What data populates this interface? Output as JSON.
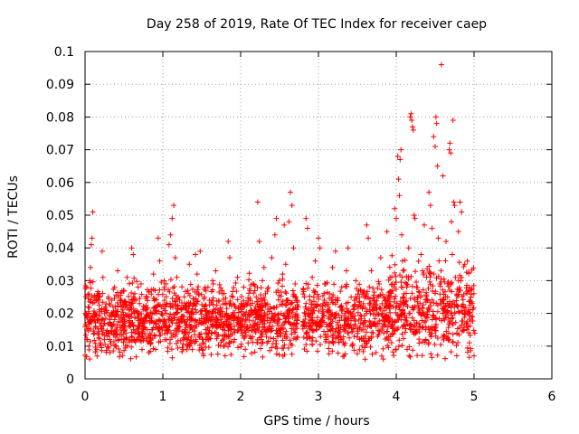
{
  "chart_data": {
    "type": "scatter",
    "title": "Day 258 of 2019, Rate Of TEC Index for receiver caep",
    "xlabel": "GPS time / hours",
    "ylabel": "ROTI / TECUs",
    "xlim": [
      0,
      6
    ],
    "ylim": [
      0,
      0.1
    ],
    "x_ticks": [
      "0",
      "1",
      "2",
      "3",
      "4",
      "5",
      "6"
    ],
    "y_ticks": [
      "0",
      "0.01",
      "0.02",
      "0.03",
      "0.04",
      "0.05",
      "0.06",
      "0.07",
      "0.08",
      "0.09",
      "0.1"
    ],
    "grid": true,
    "marker": "+",
    "series": [
      {
        "name": "ROTI",
        "color": "#ff0000",
        "points": [
          [
            0.0,
            0.016
          ],
          [
            0.02,
            0.028
          ],
          [
            0.03,
            0.012
          ],
          [
            0.04,
            0.022
          ],
          [
            0.05,
            0.01
          ],
          [
            0.06,
            0.03
          ],
          [
            0.07,
            0.034
          ],
          [
            0.08,
            0.041
          ],
          [
            0.09,
            0.043
          ],
          [
            0.1,
            0.051
          ],
          [
            0.11,
            0.02
          ],
          [
            0.12,
            0.014
          ],
          [
            0.14,
            0.024
          ],
          [
            0.15,
            0.009
          ],
          [
            0.17,
            0.018
          ],
          [
            0.18,
            0.026
          ],
          [
            0.2,
            0.011
          ],
          [
            0.22,
            0.039
          ],
          [
            0.23,
            0.031
          ],
          [
            0.25,
            0.017
          ],
          [
            0.27,
            0.021
          ],
          [
            0.29,
            0.013
          ],
          [
            0.3,
            0.025
          ],
          [
            0.32,
            0.008
          ],
          [
            0.34,
            0.019
          ],
          [
            0.36,
            0.022
          ],
          [
            0.38,
            0.028
          ],
          [
            0.4,
            0.015
          ],
          [
            0.42,
            0.033
          ],
          [
            0.44,
            0.012
          ],
          [
            0.46,
            0.024
          ],
          [
            0.48,
            0.018
          ],
          [
            0.5,
            0.027
          ],
          [
            0.52,
            0.01
          ],
          [
            0.54,
            0.031
          ],
          [
            0.56,
            0.021
          ],
          [
            0.58,
            0.016
          ],
          [
            0.6,
            0.04
          ],
          [
            0.62,
            0.038
          ],
          [
            0.64,
            0.026
          ],
          [
            0.66,
            0.012
          ],
          [
            0.68,
            0.019
          ],
          [
            0.7,
            0.023
          ],
          [
            0.72,
            0.029
          ],
          [
            0.74,
            0.014
          ],
          [
            0.76,
            0.017
          ],
          [
            0.78,
            0.021
          ],
          [
            0.8,
            0.025
          ],
          [
            0.82,
            0.008
          ],
          [
            0.84,
            0.011
          ],
          [
            0.86,
            0.015
          ],
          [
            0.88,
            0.032
          ],
          [
            0.9,
            0.027
          ],
          [
            0.92,
            0.02
          ],
          [
            0.94,
            0.043
          ],
          [
            0.96,
            0.036
          ],
          [
            0.98,
            0.022
          ],
          [
            1.0,
            0.018
          ],
          [
            1.02,
            0.024
          ],
          [
            1.04,
            0.029
          ],
          [
            1.06,
            0.014
          ],
          [
            1.08,
            0.041
          ],
          [
            1.1,
            0.044
          ],
          [
            1.12,
            0.049
          ],
          [
            1.14,
            0.053
          ],
          [
            1.16,
            0.037
          ],
          [
            1.18,
            0.031
          ],
          [
            1.2,
            0.025
          ],
          [
            1.22,
            0.016
          ],
          [
            1.24,
            0.019
          ],
          [
            1.26,
            0.009
          ],
          [
            1.28,
            0.012
          ],
          [
            1.3,
            0.021
          ],
          [
            1.32,
            0.027
          ],
          [
            1.34,
            0.035
          ],
          [
            1.36,
            0.02
          ],
          [
            1.38,
            0.015
          ],
          [
            1.4,
            0.023
          ],
          [
            1.42,
            0.038
          ],
          [
            1.44,
            0.032
          ],
          [
            1.46,
            0.026
          ],
          [
            1.48,
            0.039
          ],
          [
            1.5,
            0.017
          ],
          [
            1.52,
            0.011
          ],
          [
            1.54,
            0.022
          ],
          [
            1.56,
            0.014
          ],
          [
            1.58,
            0.028
          ],
          [
            1.6,
            0.024
          ],
          [
            1.62,
            0.019
          ],
          [
            1.64,
            0.03
          ],
          [
            1.66,
            0.018
          ],
          [
            1.68,
            0.033
          ],
          [
            1.7,
            0.013
          ],
          [
            1.72,
            0.021
          ],
          [
            1.74,
            0.016
          ],
          [
            1.76,
            0.027
          ],
          [
            1.78,
            0.01
          ],
          [
            1.8,
            0.023
          ],
          [
            1.82,
            0.02
          ],
          [
            1.84,
            0.042
          ],
          [
            1.86,
            0.037
          ],
          [
            1.88,
            0.015
          ],
          [
            1.9,
            0.025
          ],
          [
            1.92,
            0.012
          ],
          [
            1.94,
            0.019
          ],
          [
            1.96,
            0.031
          ],
          [
            1.98,
            0.017
          ],
          [
            2.0,
            0.022
          ],
          [
            2.02,
            0.014
          ],
          [
            2.04,
            0.028
          ],
          [
            2.06,
            0.009
          ],
          [
            2.08,
            0.018
          ],
          [
            2.1,
            0.024
          ],
          [
            2.12,
            0.013
          ],
          [
            2.14,
            0.021
          ],
          [
            2.16,
            0.029
          ],
          [
            2.18,
            0.016
          ],
          [
            2.2,
            0.025
          ],
          [
            2.22,
            0.054
          ],
          [
            2.24,
            0.042
          ],
          [
            2.26,
            0.019
          ],
          [
            2.28,
            0.03
          ],
          [
            2.3,
            0.034
          ],
          [
            2.32,
            0.026
          ],
          [
            2.34,
            0.011
          ],
          [
            2.36,
            0.015
          ],
          [
            2.38,
            0.022
          ],
          [
            2.4,
            0.037
          ],
          [
            2.42,
            0.018
          ],
          [
            2.44,
            0.044
          ],
          [
            2.46,
            0.049
          ],
          [
            2.48,
            0.027
          ],
          [
            2.5,
            0.014
          ],
          [
            2.52,
            0.02
          ],
          [
            2.54,
            0.032
          ],
          [
            2.56,
            0.047
          ],
          [
            2.58,
            0.035
          ],
          [
            2.6,
            0.024
          ],
          [
            2.62,
            0.048
          ],
          [
            2.64,
            0.057
          ],
          [
            2.66,
            0.053
          ],
          [
            2.68,
            0.04
          ],
          [
            2.7,
            0.029
          ],
          [
            2.72,
            0.017
          ],
          [
            2.74,
            0.022
          ],
          [
            2.8,
            0.016
          ],
          [
            2.82,
            0.025
          ],
          [
            2.84,
            0.049
          ],
          [
            2.86,
            0.046
          ],
          [
            2.88,
            0.013
          ],
          [
            2.9,
            0.02
          ],
          [
            2.92,
            0.031
          ],
          [
            2.94,
            0.027
          ],
          [
            2.96,
            0.036
          ],
          [
            2.98,
            0.015
          ],
          [
            3.0,
            0.043
          ],
          [
            3.02,
            0.04
          ],
          [
            3.04,
            0.018
          ],
          [
            3.06,
            0.023
          ],
          [
            3.08,
            0.029
          ],
          [
            3.1,
            0.012
          ],
          [
            3.12,
            0.021
          ],
          [
            3.14,
            0.026
          ],
          [
            3.16,
            0.017
          ],
          [
            3.18,
            0.034
          ],
          [
            3.2,
            0.019
          ],
          [
            3.22,
            0.039
          ],
          [
            3.24,
            0.024
          ],
          [
            3.26,
            0.014
          ],
          [
            3.28,
            0.022
          ],
          [
            3.3,
            0.028
          ],
          [
            3.32,
            0.011
          ],
          [
            3.34,
            0.02
          ],
          [
            3.36,
            0.033
          ],
          [
            3.38,
            0.04
          ],
          [
            3.4,
            0.016
          ],
          [
            3.42,
            0.025
          ],
          [
            3.44,
            0.019
          ],
          [
            3.46,
            0.013
          ],
          [
            3.48,
            0.03
          ],
          [
            3.5,
            0.022
          ],
          [
            3.52,
            0.018
          ],
          [
            3.54,
            0.027
          ],
          [
            3.56,
            0.01
          ],
          [
            3.58,
            0.015
          ],
          [
            3.6,
            0.006
          ],
          [
            3.62,
            0.047
          ],
          [
            3.64,
            0.043
          ],
          [
            3.66,
            0.021
          ],
          [
            3.68,
            0.033
          ],
          [
            3.7,
            0.017
          ],
          [
            3.72,
            0.024
          ],
          [
            3.74,
            0.008
          ],
          [
            3.76,
            0.013
          ],
          [
            3.78,
            0.029
          ],
          [
            3.8,
            0.037
          ],
          [
            3.82,
            0.02
          ],
          [
            3.84,
            0.014
          ],
          [
            3.86,
            0.025
          ],
          [
            3.88,
            0.045
          ],
          [
            3.9,
            0.019
          ],
          [
            3.92,
            0.031
          ],
          [
            3.94,
            0.011
          ],
          [
            3.96,
            0.022
          ],
          [
            3.98,
            0.052
          ],
          [
            4.0,
            0.049
          ],
          [
            4.02,
            0.068
          ],
          [
            4.03,
            0.061
          ],
          [
            4.04,
            0.056
          ],
          [
            4.05,
            0.067
          ],
          [
            4.06,
            0.07
          ],
          [
            4.07,
            0.044
          ],
          [
            4.08,
            0.036
          ],
          [
            4.1,
            0.026
          ],
          [
            4.12,
            0.018
          ],
          [
            4.14,
            0.009
          ],
          [
            4.16,
            0.04
          ],
          [
            4.18,
            0.08
          ],
          [
            4.19,
            0.081
          ],
          [
            4.2,
            0.079
          ],
          [
            4.21,
            0.077
          ],
          [
            4.22,
            0.076
          ],
          [
            4.23,
            0.05
          ],
          [
            4.24,
            0.049
          ],
          [
            4.26,
            0.028
          ],
          [
            4.28,
            0.015
          ],
          [
            4.3,
            0.021
          ],
          [
            4.32,
            0.038
          ],
          [
            4.34,
            0.033
          ],
          [
            4.36,
            0.047
          ],
          [
            4.38,
            0.012
          ],
          [
            4.4,
            0.024
          ],
          [
            4.42,
            0.057
          ],
          [
            4.44,
            0.053
          ],
          [
            4.46,
            0.046
          ],
          [
            4.48,
            0.074
          ],
          [
            4.5,
            0.071
          ],
          [
            4.51,
            0.08
          ],
          [
            4.52,
            0.078
          ],
          [
            4.53,
            0.065
          ],
          [
            4.54,
            0.043
          ],
          [
            4.55,
            0.036
          ],
          [
            4.56,
            0.029
          ],
          [
            4.58,
            0.096
          ],
          [
            4.6,
            0.062
          ],
          [
            4.62,
            0.018
          ],
          [
            4.64,
            0.042
          ],
          [
            4.66,
            0.025
          ],
          [
            4.68,
            0.07
          ],
          [
            4.69,
            0.072
          ],
          [
            4.7,
            0.069
          ],
          [
            4.71,
            0.048
          ],
          [
            4.72,
            0.038
          ],
          [
            4.73,
            0.079
          ],
          [
            4.74,
            0.054
          ],
          [
            4.75,
            0.053
          ],
          [
            4.76,
            0.031
          ],
          [
            4.78,
            0.014
          ],
          [
            4.8,
            0.045
          ],
          [
            4.82,
            0.054
          ],
          [
            4.84,
            0.051
          ],
          [
            4.86,
            0.022
          ],
          [
            4.88,
            0.035
          ],
          [
            4.9,
            0.017
          ],
          [
            4.92,
            0.027
          ],
          [
            4.94,
            0.011
          ],
          [
            4.96,
            0.025
          ],
          [
            4.98,
            0.019
          ],
          [
            5.0,
            0.007
          ],
          [
            5.01,
            0.014
          ]
        ]
      }
    ]
  }
}
